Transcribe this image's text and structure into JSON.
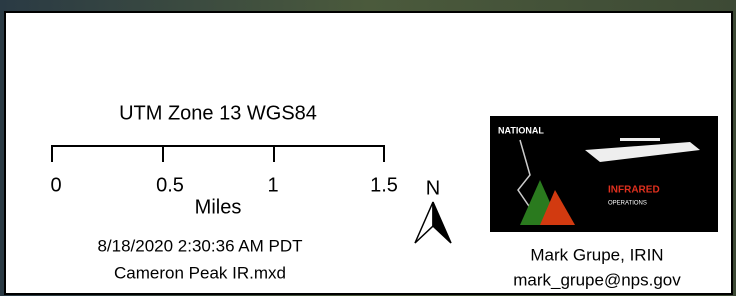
{
  "scale_bar": {
    "title": "UTM Zone 13 WGS84",
    "labels": [
      "0",
      "0.5",
      "1",
      "1.5"
    ],
    "unit": "Miles"
  },
  "north_arrow": {
    "label": "N"
  },
  "map_info": {
    "datetime": "8/18/2020 2:30:36 AM PDT",
    "document": "Cameron Peak IR.mxd"
  },
  "logo": {
    "line1": "NATIONAL",
    "line2": "INFRARED",
    "line3": "OPERATIONS"
  },
  "credits": {
    "name": "Mark Grupe, IRIN",
    "email": "mark_grupe@nps.gov"
  }
}
